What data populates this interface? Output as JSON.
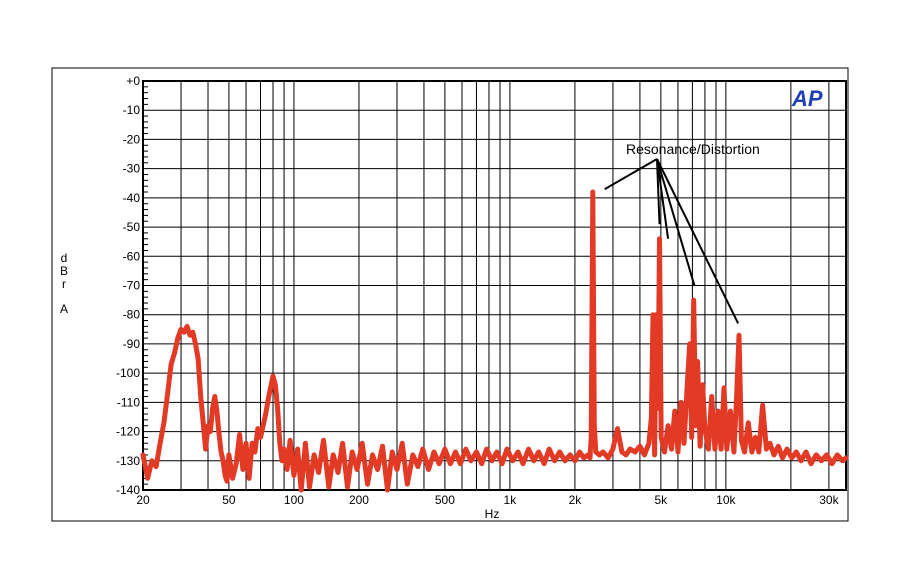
{
  "chart_data": {
    "type": "line",
    "title": "",
    "xlabel": "Hz",
    "ylabel_lines": [
      "d",
      "B",
      "r",
      "A"
    ],
    "x_scale": "log",
    "xlim": [
      20,
      36000
    ],
    "ylim": [
      -140,
      0
    ],
    "grid": true,
    "x_ticks": [
      {
        "value": 20,
        "label": "20"
      },
      {
        "value": 50,
        "label": "50"
      },
      {
        "value": 100,
        "label": "100"
      },
      {
        "value": 200,
        "label": "200"
      },
      {
        "value": 500,
        "label": "500"
      },
      {
        "value": 1000,
        "label": "1k"
      },
      {
        "value": 2000,
        "label": "2k"
      },
      {
        "value": 5000,
        "label": "5k"
      },
      {
        "value": 10000,
        "label": "10k"
      },
      {
        "value": 30000,
        "label": "30k"
      }
    ],
    "y_ticks": [
      {
        "value": 0,
        "label": "+0"
      },
      {
        "value": -10,
        "label": "-10"
      },
      {
        "value": -20,
        "label": "-20"
      },
      {
        "value": -30,
        "label": "-30"
      },
      {
        "value": -40,
        "label": "-40"
      },
      {
        "value": -50,
        "label": "-50"
      },
      {
        "value": -60,
        "label": "-60"
      },
      {
        "value": -70,
        "label": "-70"
      },
      {
        "value": -80,
        "label": "-80"
      },
      {
        "value": -90,
        "label": "-90"
      },
      {
        "value": -100,
        "label": "-100"
      },
      {
        "value": -110,
        "label": "-110"
      },
      {
        "value": -120,
        "label": "-120"
      },
      {
        "value": -130,
        "label": "-130"
      },
      {
        "value": -140,
        "label": "-140"
      }
    ],
    "series": [
      {
        "color": "#e33a26",
        "points": [
          [
            20,
            -128
          ],
          [
            21,
            -136
          ],
          [
            22,
            -130
          ],
          [
            23,
            -132
          ],
          [
            24,
            -124
          ],
          [
            25,
            -117
          ],
          [
            26,
            -107
          ],
          [
            27,
            -97
          ],
          [
            28,
            -93
          ],
          [
            29,
            -88
          ],
          [
            30,
            -85
          ],
          [
            31,
            -86
          ],
          [
            32,
            -84
          ],
          [
            33,
            -87
          ],
          [
            34,
            -86
          ],
          [
            35,
            -90
          ],
          [
            36,
            -95
          ],
          [
            37,
            -108
          ],
          [
            38,
            -117
          ],
          [
            39,
            -126
          ],
          [
            40,
            -118
          ],
          [
            41,
            -120
          ],
          [
            42,
            -112
          ],
          [
            43,
            -108
          ],
          [
            44,
            -113
          ],
          [
            45,
            -121
          ],
          [
            46,
            -127
          ],
          [
            47,
            -130
          ],
          [
            48,
            -135
          ],
          [
            49,
            -137
          ],
          [
            50,
            -128
          ],
          [
            52,
            -136
          ],
          [
            54,
            -131
          ],
          [
            56,
            -121
          ],
          [
            58,
            -133
          ],
          [
            60,
            -124
          ],
          [
            62,
            -136
          ],
          [
            64,
            -124
          ],
          [
            66,
            -127
          ],
          [
            68,
            -119
          ],
          [
            70,
            -122
          ],
          [
            72,
            -118
          ],
          [
            74,
            -114
          ],
          [
            76,
            -109
          ],
          [
            78,
            -105
          ],
          [
            80,
            -101
          ],
          [
            82,
            -104
          ],
          [
            84,
            -112
          ],
          [
            86,
            -124
          ],
          [
            88,
            -130
          ],
          [
            90,
            -126
          ],
          [
            93,
            -133
          ],
          [
            96,
            -123
          ],
          [
            100,
            -135
          ],
          [
            104,
            -126
          ],
          [
            108,
            -140
          ],
          [
            113,
            -124
          ],
          [
            118,
            -139
          ],
          [
            124,
            -128
          ],
          [
            130,
            -134
          ],
          [
            137,
            -123
          ],
          [
            145,
            -139
          ],
          [
            152,
            -128
          ],
          [
            160,
            -134
          ],
          [
            168,
            -124
          ],
          [
            177,
            -139
          ],
          [
            186,
            -127
          ],
          [
            196,
            -133
          ],
          [
            207,
            -124
          ],
          [
            219,
            -138
          ],
          [
            231,
            -128
          ],
          [
            244,
            -133
          ],
          [
            257,
            -125
          ],
          [
            271,
            -140
          ],
          [
            285,
            -127
          ],
          [
            300,
            -133
          ],
          [
            317,
            -124
          ],
          [
            335,
            -138
          ],
          [
            355,
            -128
          ],
          [
            375,
            -132
          ],
          [
            395,
            -126
          ],
          [
            420,
            -133
          ],
          [
            445,
            -127
          ],
          [
            470,
            -131
          ],
          [
            500,
            -126
          ],
          [
            530,
            -131
          ],
          [
            560,
            -127
          ],
          [
            590,
            -131
          ],
          [
            625,
            -126
          ],
          [
            660,
            -130
          ],
          [
            700,
            -127
          ],
          [
            740,
            -131
          ],
          [
            780,
            -126
          ],
          [
            825,
            -130
          ],
          [
            870,
            -127
          ],
          [
            920,
            -131
          ],
          [
            970,
            -126
          ],
          [
            1030,
            -130
          ],
          [
            1090,
            -127
          ],
          [
            1150,
            -131
          ],
          [
            1220,
            -126
          ],
          [
            1290,
            -130
          ],
          [
            1360,
            -127
          ],
          [
            1440,
            -131
          ],
          [
            1520,
            -126
          ],
          [
            1610,
            -130
          ],
          [
            1700,
            -127
          ],
          [
            1800,
            -130
          ],
          [
            1900,
            -128
          ],
          [
            2000,
            -130
          ],
          [
            2100,
            -127
          ],
          [
            2200,
            -129
          ],
          [
            2300,
            -128
          ],
          [
            2350,
            -129
          ],
          [
            2380,
            -122
          ],
          [
            2420,
            -38
          ],
          [
            2460,
            -118
          ],
          [
            2500,
            -127
          ],
          [
            2600,
            -128
          ],
          [
            2700,
            -127
          ],
          [
            2850,
            -129
          ],
          [
            3000,
            -126
          ],
          [
            3150,
            -119
          ],
          [
            3300,
            -127
          ],
          [
            3450,
            -128
          ],
          [
            3600,
            -126
          ],
          [
            3800,
            -127
          ],
          [
            4000,
            -125
          ],
          [
            4200,
            -128
          ],
          [
            4400,
            -124
          ],
          [
            4520,
            -115
          ],
          [
            4600,
            -80
          ],
          [
            4680,
            -128
          ],
          [
            4760,
            -80
          ],
          [
            4850,
            -112
          ],
          [
            4930,
            -54
          ],
          [
            5020,
            -122
          ],
          [
            5200,
            -127
          ],
          [
            5400,
            -118
          ],
          [
            5600,
            -126
          ],
          [
            5800,
            -113
          ],
          [
            6000,
            -127
          ],
          [
            6200,
            -110
          ],
          [
            6400,
            -124
          ],
          [
            6650,
            -102
          ],
          [
            6800,
            -90
          ],
          [
            6950,
            -122
          ],
          [
            7100,
            -75
          ],
          [
            7250,
            -118
          ],
          [
            7400,
            -96
          ],
          [
            7600,
            -125
          ],
          [
            7800,
            -104
          ],
          [
            8000,
            -119
          ],
          [
            8300,
            -126
          ],
          [
            8600,
            -108
          ],
          [
            8900,
            -126
          ],
          [
            9200,
            -113
          ],
          [
            9500,
            -126
          ],
          [
            9800,
            -105
          ],
          [
            10100,
            -126
          ],
          [
            10500,
            -113
          ],
          [
            10900,
            -127
          ],
          [
            11200,
            -109
          ],
          [
            11500,
            -87
          ],
          [
            11800,
            -123
          ],
          [
            12200,
            -127
          ],
          [
            12700,
            -117
          ],
          [
            13200,
            -127
          ],
          [
            13700,
            -122
          ],
          [
            14200,
            -127
          ],
          [
            14800,
            -111
          ],
          [
            15400,
            -126
          ],
          [
            16000,
            -124
          ],
          [
            16700,
            -128
          ],
          [
            17500,
            -125
          ],
          [
            18300,
            -129
          ],
          [
            19200,
            -126
          ],
          [
            20200,
            -129
          ],
          [
            21200,
            -127
          ],
          [
            22300,
            -130
          ],
          [
            23500,
            -127
          ],
          [
            24800,
            -131
          ],
          [
            26200,
            -128
          ],
          [
            27700,
            -130
          ],
          [
            29300,
            -128
          ],
          [
            31000,
            -131
          ],
          [
            32800,
            -128
          ],
          [
            34700,
            -130
          ],
          [
            36000,
            -129
          ]
        ]
      }
    ],
    "annotation": {
      "text": "Resonance/Distortion",
      "targets": [
        {
          "x": 2750,
          "y": -37
        },
        {
          "x": 4930,
          "y": -49
        },
        {
          "x": 5400,
          "y": -54
        },
        {
          "x": 7150,
          "y": -70
        },
        {
          "x": 11400,
          "y": -83
        }
      ]
    },
    "logo": "AP",
    "line_color": "#e33a26",
    "logo_color": "#1f3fb4"
  }
}
